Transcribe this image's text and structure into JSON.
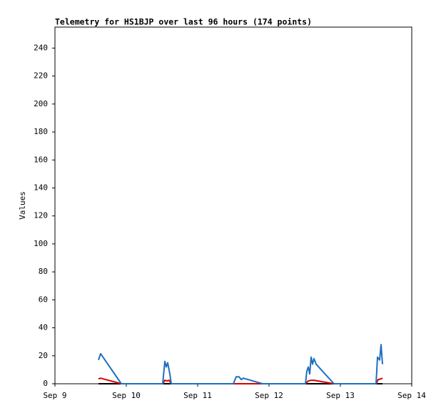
{
  "chart_data": {
    "type": "line",
    "title": "Telemetry for HS1BJP over last 96 hours (174 points)",
    "y_label": "Values",
    "xlim": [
      9,
      14
    ],
    "xticks": [
      {
        "value": 9,
        "label": "Sep 9"
      },
      {
        "value": 10,
        "label": "Sep 10"
      },
      {
        "value": 11,
        "label": "Sep 11"
      },
      {
        "value": 12,
        "label": "Sep 12"
      },
      {
        "value": 13,
        "label": "Sep 13"
      },
      {
        "value": 14,
        "label": "Sep 14"
      }
    ],
    "ylim": [
      0,
      255
    ],
    "yticks": [
      0,
      20,
      40,
      60,
      80,
      100,
      120,
      140,
      160,
      180,
      200,
      220,
      240
    ],
    "grid": false,
    "series": [
      {
        "color": "#000000",
        "x": [
          9.61,
          13.59
        ],
        "values": [
          0,
          0
        ]
      },
      {
        "color": "#dd0000",
        "x": [
          9.61,
          9.64,
          9.93,
          10.51,
          10.54,
          10.57,
          10.6,
          10.63,
          12.51,
          12.55,
          12.59,
          12.63,
          12.91,
          13.5,
          13.53,
          13.57,
          13.59
        ],
        "values": [
          3.5,
          4,
          0,
          0,
          2.5,
          2,
          2.5,
          0,
          0,
          2,
          2.5,
          2.5,
          0,
          0,
          3,
          3.5,
          4
        ]
      },
      {
        "color": "#1f6fbf",
        "x": [
          9.61,
          9.64,
          9.93,
          10.51,
          10.54,
          10.56,
          10.58,
          10.61,
          10.63,
          11.5,
          11.54,
          11.58,
          11.61,
          11.64,
          11.91,
          12.51,
          12.53,
          12.55,
          12.57,
          12.59,
          12.61,
          12.63,
          12.66,
          12.91,
          13.5,
          13.52,
          13.55,
          13.57,
          13.59
        ],
        "values": [
          17,
          21.5,
          0,
          0,
          16,
          12,
          15,
          7,
          0,
          0,
          5,
          5,
          3,
          4,
          0,
          0,
          9,
          12,
          7,
          19,
          14,
          18,
          14,
          0,
          0,
          19,
          17,
          28,
          14
        ]
      }
    ]
  }
}
